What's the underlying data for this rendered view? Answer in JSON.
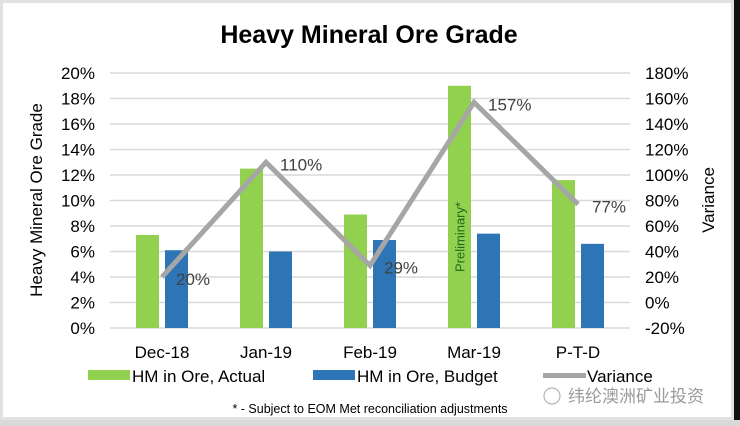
{
  "chart_data": {
    "type": "bar",
    "title": "Heavy Mineral Ore Grade",
    "xlabel": "",
    "ylabel": "Heavy Mineral Ore Grade",
    "y2label": "Variance",
    "categories": [
      "Dec-18",
      "Jan-19",
      "Feb-19",
      "Mar-19",
      "P-T-D"
    ],
    "ylim": [
      0,
      20
    ],
    "y2lim": [
      -20,
      180
    ],
    "yticks": [
      "0%",
      "2%",
      "4%",
      "6%",
      "8%",
      "10%",
      "12%",
      "14%",
      "16%",
      "18%",
      "20%"
    ],
    "y2ticks": [
      "-20%",
      "0%",
      "20%",
      "40%",
      "60%",
      "80%",
      "100%",
      "120%",
      "140%",
      "160%",
      "180%"
    ],
    "grid": true,
    "series": [
      {
        "name": "HM in Ore, Actual",
        "type": "bar",
        "axis": "left",
        "color": "#92d050",
        "values": [
          7.3,
          12.5,
          8.9,
          19.0,
          11.6
        ]
      },
      {
        "name": "HM in Ore, Budget",
        "type": "bar",
        "axis": "left",
        "color": "#2e75b6",
        "values": [
          6.1,
          6.0,
          6.9,
          7.4,
          6.6
        ]
      },
      {
        "name": "Variance",
        "type": "line",
        "axis": "right",
        "color": "#a6a6a6",
        "values": [
          20,
          110,
          29,
          157,
          77
        ],
        "labels": [
          "20%",
          "110%",
          "29%",
          "157%",
          "77%"
        ]
      }
    ],
    "annotations": [
      {
        "category": "Mar-19",
        "series": "HM in Ore, Actual",
        "text": "Preliminary*"
      }
    ],
    "legend_position": "bottom",
    "footnote": "* - Subject to EOM Met reconciliation adjustments"
  },
  "watermark": "纬纶澳洲矿业投资"
}
